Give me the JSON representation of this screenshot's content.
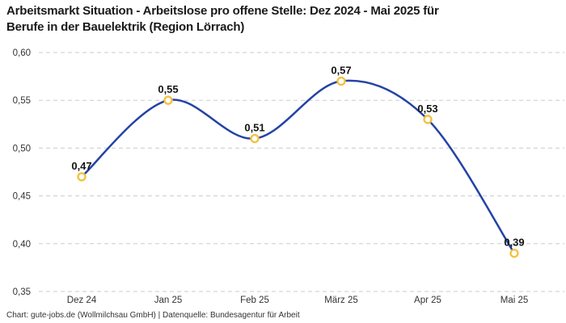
{
  "title": {
    "line1": "Arbeitsmarkt Situation - Arbeitslose pro offene Stelle: Dez 2024 - Mai 2025 für",
    "line2": "Berufe in der Bauelektrik (Region Lörrach)"
  },
  "footer": {
    "text": "Chart: gute-jobs.de (Wollmilchsau GmbH) | Datenquelle: Bundesagentur für Arbeit"
  },
  "chart_data": {
    "type": "line",
    "title": "Arbeitsmarkt Situation - Arbeitslose pro offene Stelle: Dez 2024 - Mai 2025 für Berufe in der Bauelektrik (Region Lörrach)",
    "categories": [
      "Dez 24",
      "Jan 25",
      "Feb 25",
      "März 25",
      "Apr 25",
      "Mai 25"
    ],
    "values": [
      0.47,
      0.55,
      0.51,
      0.57,
      0.53,
      0.39
    ],
    "point_labels": [
      "0,47",
      "0,55",
      "0,51",
      "0,57",
      "0,53",
      "0,39"
    ],
    "y_ticks": [
      {
        "value": 0.6,
        "label": "0,60"
      },
      {
        "value": 0.55,
        "label": "0,55"
      },
      {
        "value": 0.5,
        "label": "0,50"
      },
      {
        "value": 0.45,
        "label": "0,45"
      },
      {
        "value": 0.4,
        "label": "0,40"
      },
      {
        "value": 0.35,
        "label": "0,35"
      }
    ],
    "ylim": [
      0.35,
      0.6
    ],
    "xlabel": "",
    "ylabel": "",
    "legend_position": "none",
    "grid": "horizontal-dashed",
    "curve": "smooth-catmull-rom",
    "colors": {
      "line": "#2343A5",
      "marker_ring": "#F4C242",
      "marker_fill": "#FFFFFF",
      "grid_line": "#CBCBCB",
      "tick_text": "#333333",
      "value_label": "#141414"
    }
  }
}
